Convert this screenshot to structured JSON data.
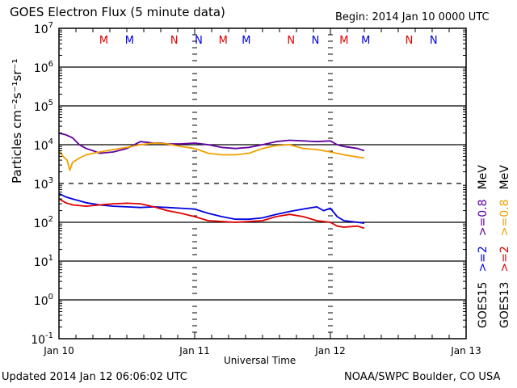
{
  "header": {
    "title": "GOES Electron Flux (5 minute data)",
    "begin": "Begin: 2014 Jan 10 0000 UTC"
  },
  "footer": {
    "updated": "Updated 2014 Jan 12 06:06:02 UTC",
    "credit": "NOAA/SWPC Boulder, CO USA"
  },
  "chart_data": {
    "type": "line",
    "title": "GOES Electron Flux (5 minute data)",
    "xlabel": "Universal Time",
    "ylabel": "Particles cm⁻²s⁻¹sr⁻¹",
    "yscale": "log",
    "ylim": [
      0.1,
      10000000
    ],
    "xlim_days": [
      0,
      3
    ],
    "x_tick_labels": [
      "Jan 10",
      "Jan 11",
      "Jan 12",
      "Jan 13"
    ],
    "y_tick_labels": [
      {
        "base": "10",
        "exp": "7",
        "value": 10000000
      },
      {
        "base": "10",
        "exp": "6",
        "value": 1000000
      },
      {
        "base": "10",
        "exp": "5",
        "value": 100000
      },
      {
        "base": "10",
        "exp": "4",
        "value": 10000
      },
      {
        "base": "10",
        "exp": "3",
        "value": 1000
      },
      {
        "base": "10",
        "exp": "2",
        "value": 100
      },
      {
        "base": "10",
        "exp": "1",
        "value": 10
      },
      {
        "base": "10",
        "exp": "0",
        "value": 1
      },
      {
        "base": "10",
        "exp": "-1",
        "value": 0.1
      }
    ],
    "threshold_line": {
      "value": 1000,
      "style": "dashed"
    },
    "grid": true,
    "local_time_markers": [
      {
        "label": "M",
        "color": "#e00000",
        "day": 0.33
      },
      {
        "label": "M",
        "color": "#0000e0",
        "day": 0.52
      },
      {
        "label": "N",
        "color": "#e00000",
        "day": 0.85
      },
      {
        "label": "N",
        "color": "#0000e0",
        "day": 1.03
      },
      {
        "label": "M",
        "color": "#e00000",
        "day": 1.21
      },
      {
        "label": "M",
        "color": "#0000e0",
        "day": 1.38
      },
      {
        "label": "N",
        "color": "#e00000",
        "day": 1.71
      },
      {
        "label": "N",
        "color": "#0000e0",
        "day": 1.89
      },
      {
        "label": "M",
        "color": "#e00000",
        "day": 2.1
      },
      {
        "label": "M",
        "color": "#0000e0",
        "day": 2.26
      },
      {
        "label": "N",
        "color": "#e00000",
        "day": 2.58
      },
      {
        "label": "N",
        "color": "#0000e0",
        "day": 2.76
      }
    ],
    "legend": {
      "placement": "right",
      "entries": [
        {
          "text": "GOES15",
          "color": "#000000",
          "column": 1
        },
        {
          "text": ">=2",
          "color": "#0000e0",
          "column": 1
        },
        {
          "text": ">=0.8",
          "color": "#6000a0",
          "column": 1
        },
        {
          "text": "MeV",
          "color": "#000000",
          "column": 1
        },
        {
          "text": "GOES13",
          "color": "#000000",
          "column": 2
        },
        {
          "text": ">=2",
          "color": "#e00000",
          "column": 2
        },
        {
          "text": ">=0.8",
          "color": "#f0a000",
          "column": 2
        },
        {
          "text": "MeV",
          "color": "#000000",
          "column": 2
        }
      ]
    },
    "series": [
      {
        "name": "GOES15 >=0.8 MeV",
        "color": "#6000a0",
        "x_days": [
          0.0,
          0.05,
          0.1,
          0.15,
          0.2,
          0.25,
          0.3,
          0.4,
          0.5,
          0.6,
          0.7,
          0.75,
          0.8,
          0.9,
          1.0,
          1.1,
          1.2,
          1.3,
          1.4,
          1.5,
          1.6,
          1.7,
          1.8,
          1.9,
          2.0,
          2.05,
          2.1,
          2.2,
          2.25
        ],
        "values": [
          20000,
          18000,
          15000,
          10000,
          8000,
          7000,
          6000,
          6500,
          8000,
          12000,
          11000,
          11000,
          10500,
          10500,
          11000,
          10000,
          8500,
          8000,
          8500,
          10000,
          12000,
          13000,
          12500,
          12000,
          12500,
          10000,
          9000,
          8000,
          7000
        ]
      },
      {
        "name": "GOES13 >=0.8 MeV",
        "color": "#f0a000",
        "x_days": [
          0.0,
          0.03,
          0.06,
          0.08,
          0.1,
          0.15,
          0.2,
          0.3,
          0.4,
          0.5,
          0.6,
          0.7,
          0.8,
          0.9,
          1.0,
          1.1,
          1.2,
          1.3,
          1.4,
          1.5,
          1.6,
          1.7,
          1.8,
          1.9,
          2.0,
          2.1,
          2.2,
          2.25
        ],
        "values": [
          7000,
          5000,
          4000,
          2200,
          3500,
          4500,
          5500,
          6500,
          7500,
          8500,
          10000,
          11000,
          10500,
          9000,
          8000,
          6000,
          5500,
          5500,
          6000,
          8000,
          9500,
          10000,
          8000,
          7500,
          6500,
          5500,
          4800,
          4500
        ]
      },
      {
        "name": "GOES15 >=2 MeV",
        "color": "#0000e0",
        "x_days": [
          0.0,
          0.05,
          0.1,
          0.2,
          0.3,
          0.4,
          0.5,
          0.6,
          0.7,
          0.8,
          0.9,
          1.0,
          1.1,
          1.2,
          1.3,
          1.4,
          1.5,
          1.6,
          1.7,
          1.8,
          1.9,
          1.95,
          2.0,
          2.05,
          2.1,
          2.2,
          2.25
        ],
        "values": [
          550,
          450,
          400,
          320,
          280,
          260,
          250,
          240,
          250,
          240,
          230,
          220,
          170,
          140,
          120,
          120,
          130,
          160,
          190,
          220,
          250,
          200,
          230,
          140,
          110,
          100,
          95
        ]
      },
      {
        "name": "GOES13 >=2 MeV",
        "color": "#e00000",
        "x_days": [
          0.0,
          0.05,
          0.1,
          0.2,
          0.3,
          0.4,
          0.5,
          0.6,
          0.7,
          0.8,
          0.9,
          1.0,
          1.1,
          1.2,
          1.3,
          1.4,
          1.5,
          1.6,
          1.7,
          1.8,
          1.9,
          2.0,
          2.05,
          2.1,
          2.2,
          2.25
        ],
        "values": [
          400,
          320,
          280,
          260,
          280,
          300,
          310,
          300,
          250,
          200,
          170,
          140,
          110,
          105,
          100,
          105,
          110,
          140,
          160,
          140,
          110,
          100,
          80,
          75,
          80,
          70
        ]
      }
    ]
  }
}
